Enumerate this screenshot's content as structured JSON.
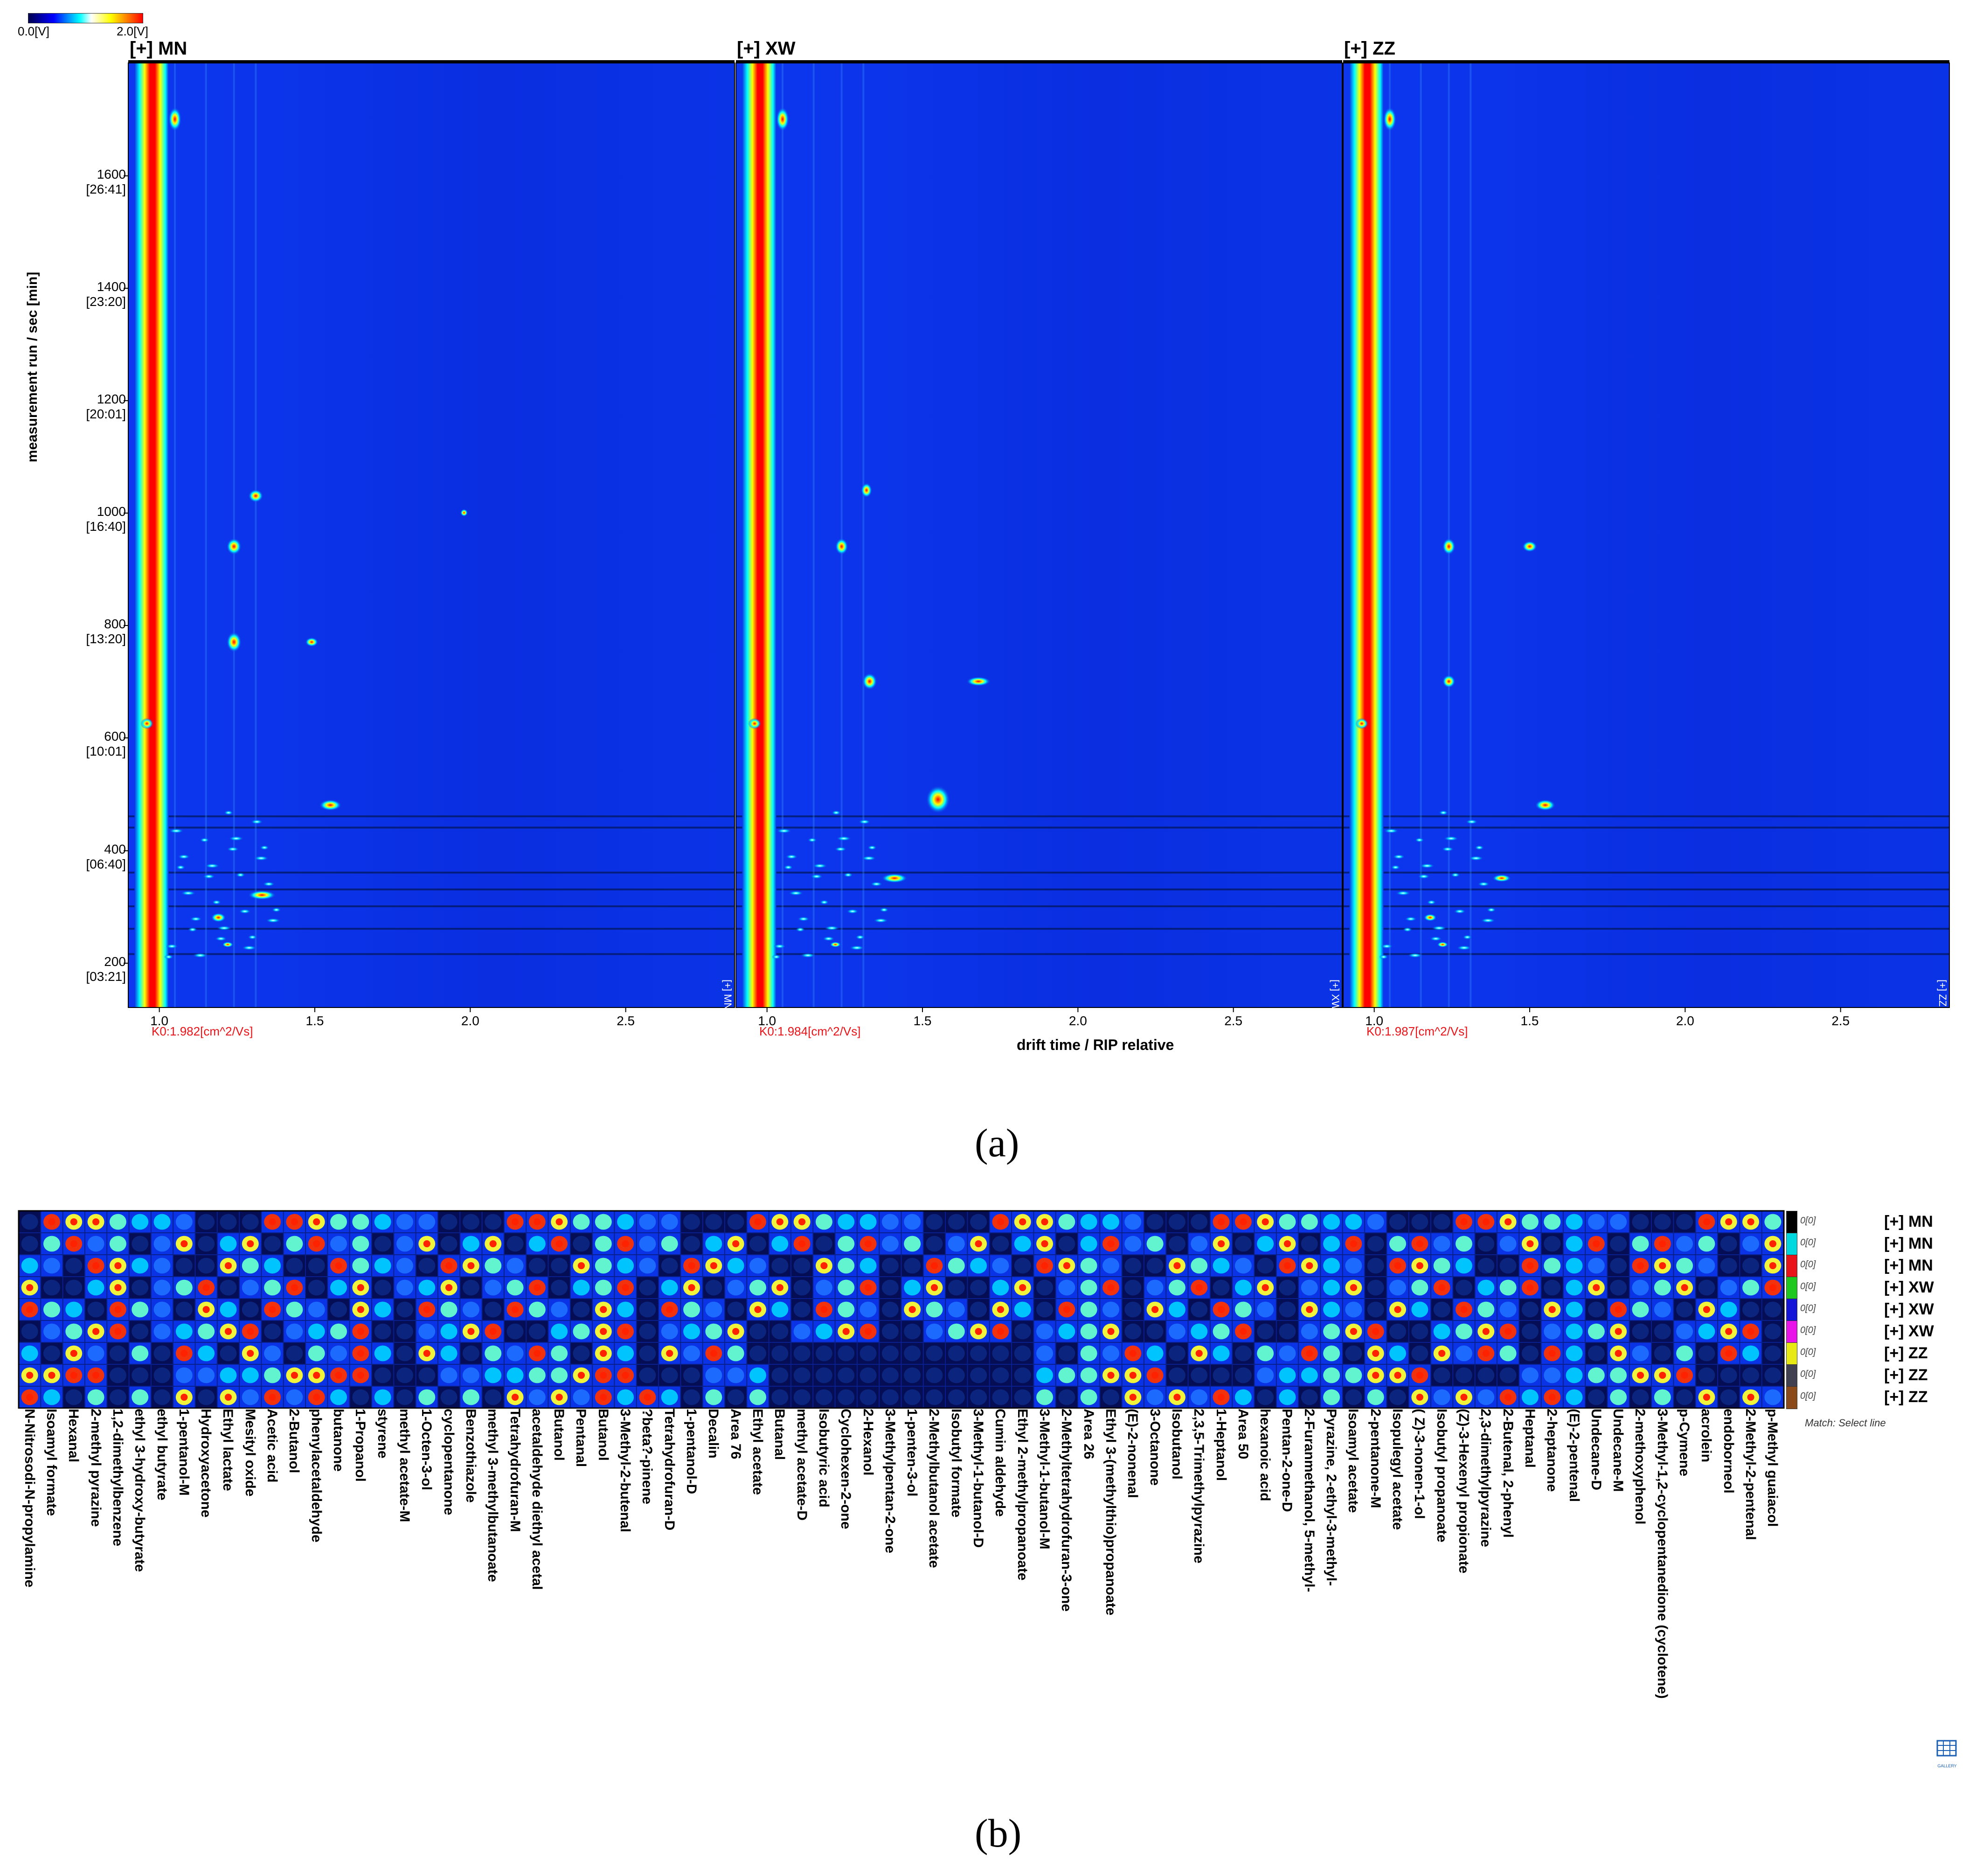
{
  "colorbar": {
    "min_label": "0.0[V]",
    "max_label": "2.0[V]"
  },
  "panel_a": {
    "caption": "(a)",
    "y_axis_label": "measurement run / sec [min]",
    "x_axis_label": "drift time / RIP relative",
    "y_ticks": [
      {
        "value": 1600,
        "label": "1600",
        "sub": "[26:41]"
      },
      {
        "value": 1400,
        "label": "1400",
        "sub": "[23:20]"
      },
      {
        "value": 1200,
        "label": "1200",
        "sub": "[20:01]"
      },
      {
        "value": 1000,
        "label": "1000",
        "sub": "[16:40]"
      },
      {
        "value": 800,
        "label": "800",
        "sub": "[13:20]"
      },
      {
        "value": 600,
        "label": "600",
        "sub": "[10:01]"
      },
      {
        "value": 400,
        "label": "400",
        "sub": "[06:40]"
      },
      {
        "value": 200,
        "label": "200",
        "sub": "[03:21]"
      }
    ],
    "x_ticks": [
      {
        "value": 1.0,
        "label": "1.0"
      },
      {
        "value": 1.5,
        "label": "1.5"
      },
      {
        "value": 2.0,
        "label": "2.0"
      },
      {
        "value": 2.5,
        "label": "2.5"
      }
    ],
    "panels": [
      {
        "title": "[+] MN",
        "k0": "K0:1.982[cm^2/Vs]",
        "tag": "[+] MN"
      },
      {
        "title": "[+] XW",
        "k0": "K0:1.984[cm^2/Vs]",
        "tag": "[+] XW"
      },
      {
        "title": "[+] ZZ",
        "k0": "K0:1.987[cm^2/Vs]",
        "tag": "[+] ZZ"
      }
    ],
    "colors": {
      "background": "#0b2ee8",
      "rip": "#e8141a",
      "colorbar": [
        "#000050",
        "#0000ff",
        "#00ffff",
        "#ffffff",
        "#ffff00",
        "#ff0000"
      ]
    }
  },
  "panel_b": {
    "caption": "(b)",
    "rows": [
      {
        "label": "[+] MN",
        "color": "#000000",
        "value": "0[0]"
      },
      {
        "label": "[+] MN",
        "color": "#00d8e0",
        "value": "0[0]"
      },
      {
        "label": "[+] MN",
        "color": "#e8141a",
        "value": "0[0]"
      },
      {
        "label": "[+] XW",
        "color": "#1ec81e",
        "value": "0[0]"
      },
      {
        "label": "[+] XW",
        "color": "#1414d8",
        "value": "0[0]"
      },
      {
        "label": "[+] XW",
        "color": "#e814e8",
        "value": "0[0]"
      },
      {
        "label": "[+] ZZ",
        "color": "#e8e814",
        "value": "0[0]"
      },
      {
        "label": "[+] ZZ",
        "color": "#404050",
        "value": "0[0]"
      },
      {
        "label": "[+] ZZ",
        "color": "#8a4a1a",
        "value": "0[0]"
      }
    ],
    "match_label": "Match: Select line",
    "gallery_label": "GALLERY",
    "compounds": [
      "N-Nitrosodi-N-propylamine",
      "Isoamyl formate",
      "Hexanal",
      "2-methyl pyrazine",
      "1,2-dimethylbenzene",
      "ethyl 3-hydroxy-butyrate",
      "ethyl butyrate",
      "1-pentanol-M",
      "Hydroxyacetone",
      "Ethyl lactate",
      "Mesityl oxide",
      "Acetic acid",
      "2-Butanol",
      "phenylacetaldehyde",
      "butanone",
      "1-Propanol",
      "styrene",
      "methyl acetate-M",
      "1-Octen-3-ol",
      "cyclopentanone",
      "Benzothiazole",
      "methyl 3-methylbutanoate",
      "Tetrahydrofuran-M",
      "acetaldehyde diethyl acetal",
      "Butanol",
      "Pentanal",
      "Butanol",
      "3-Methyl-2-butenal",
      "?beta?-pinene",
      "Tetrahydrofuran-D",
      "1-pentanol-D",
      "Decalin",
      "Area 76",
      "Ethyl acetate",
      "Butanal",
      "methyl acetate-D",
      "Isobutyric acid",
      "Cyclohexen-2-one",
      "2-Hexanol",
      "3-Methylpentan-2-one",
      "1-penten-3-ol",
      "2-Methylbutanol acetate",
      "Isobutyl formate",
      "3-Methyl-1-butanol-D",
      "Cumin aldehyde",
      "Ethyl 2-methylpropanoate",
      "3-Methyl-1-butanol-M",
      "2-Methyltetrahydrofuran-3-one",
      "Area 26",
      "Ethyl 3-(methylthio)propanoate",
      "(E)-2-nonenal",
      "3-Octanone",
      "Isobutanol",
      "2,3,5-Trimethylpyrazine",
      "1-Heptanol",
      "Area 50",
      "hexanoic acid",
      "Pentan-2-one-D",
      "2-Furanmethanol, 5-methyl-",
      "Pyrazine, 2-ethyl-3-methyl-",
      "Isoamyl acetate",
      "2-pentanone-M",
      "Isopulegyl acetate",
      "( Z)-3-nonen-1-ol",
      "Isobutyl propanoate",
      "(Z)-3-Hexenyl propionate",
      "2,3-dimethylpyrazine",
      "2-Butenal, 2-phenyl",
      "Heptanal",
      "2-heptanone",
      "(E)-2-pentenal",
      "Undecane-D",
      "Undecane-M",
      "2-methoxyphenol",
      "3-Methyl-1,2-cyclopentanedione (cyclotene)",
      "p-Cymene",
      "acrolein",
      "endoborneol",
      "2-Methyl-2-pentenal",
      "p-Methyl guaiacol"
    ]
  }
}
